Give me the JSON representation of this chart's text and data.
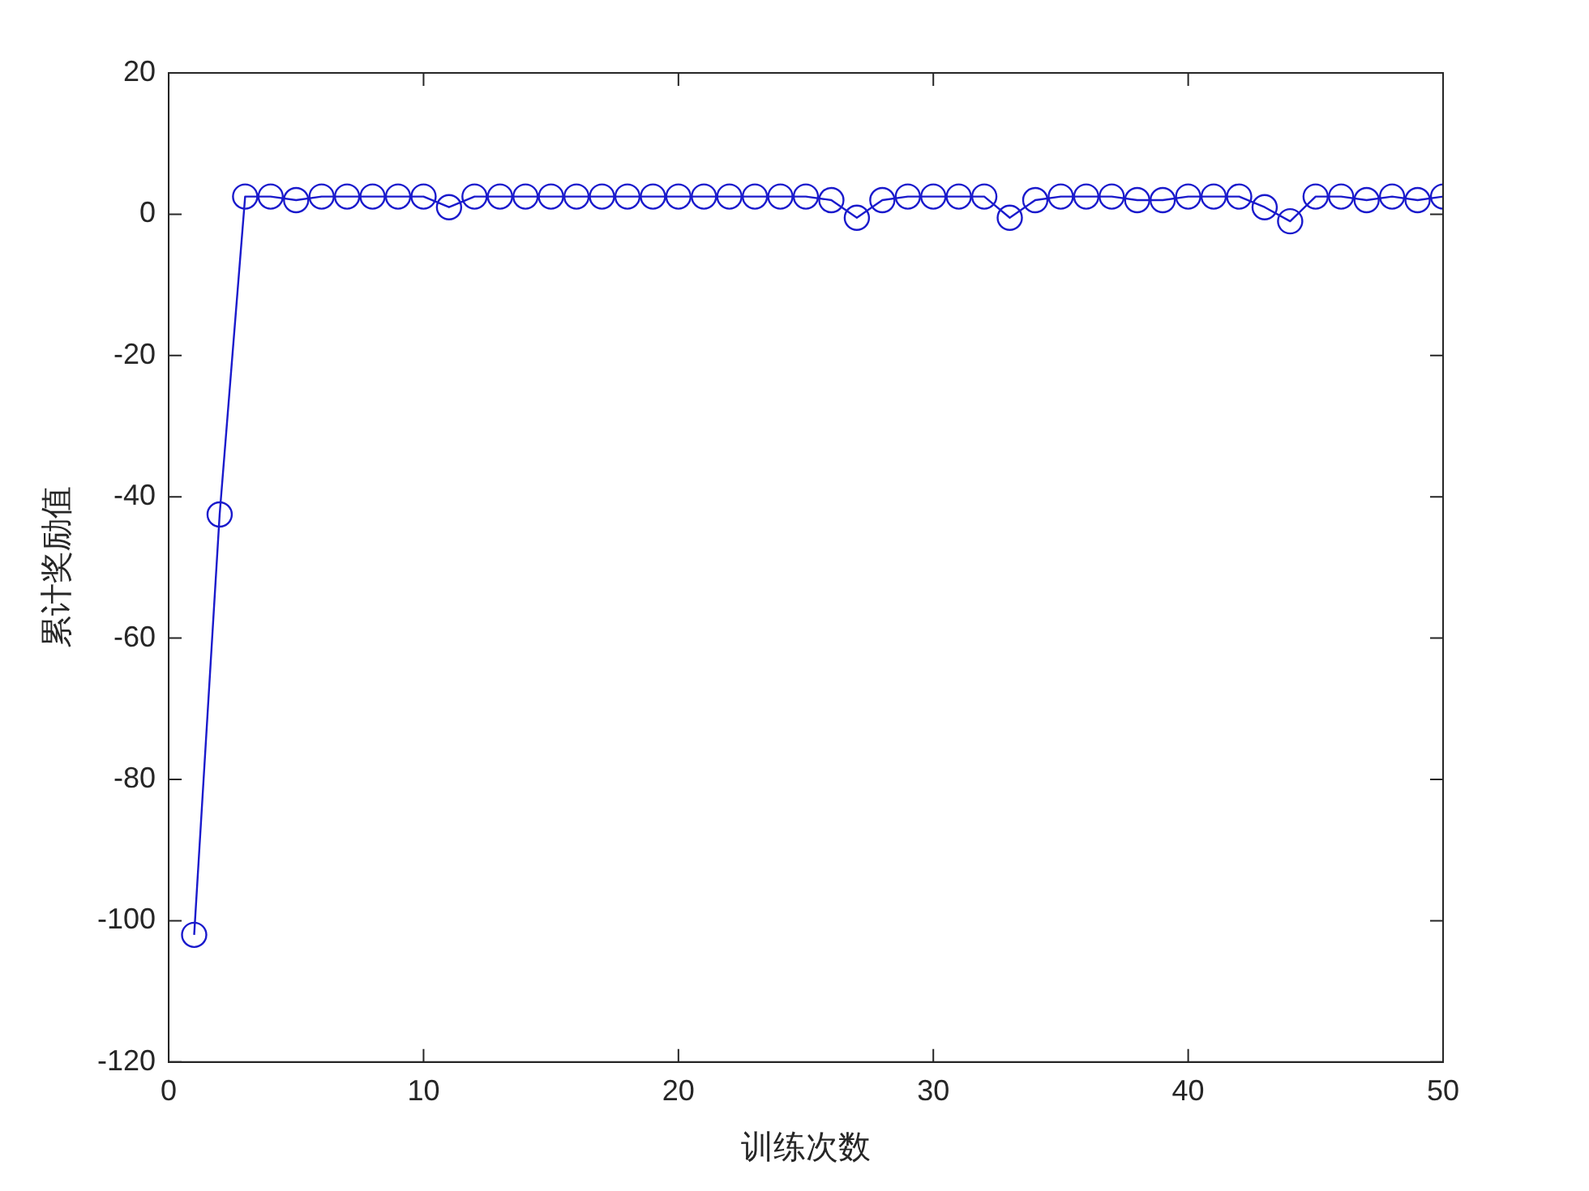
{
  "chart_data": {
    "type": "line",
    "xlabel": "训练次数",
    "ylabel": "累计奖励值",
    "x": [
      1,
      2,
      3,
      4,
      5,
      6,
      7,
      8,
      9,
      10,
      11,
      12,
      13,
      14,
      15,
      16,
      17,
      18,
      19,
      20,
      21,
      22,
      23,
      24,
      25,
      26,
      27,
      28,
      29,
      30,
      31,
      32,
      33,
      34,
      35,
      36,
      37,
      38,
      39,
      40,
      41,
      42,
      43,
      44,
      45,
      46,
      47,
      48,
      49,
      50
    ],
    "series": [
      {
        "color": "#1a1acc",
        "values": [
          -102,
          -42.5,
          2.5,
          2.5,
          2,
          2.5,
          2.5,
          2.5,
          2.5,
          2.5,
          1,
          2.5,
          2.5,
          2.5,
          2.5,
          2.5,
          2.5,
          2.5,
          2.5,
          2.5,
          2.5,
          2.5,
          2.5,
          2.5,
          2.5,
          2,
          -0.5,
          2,
          2.5,
          2.5,
          2.5,
          2.5,
          -0.5,
          2,
          2.5,
          2.5,
          2.5,
          2,
          2,
          2.5,
          2.5,
          2.5,
          1,
          -1,
          2.5,
          2.5,
          2,
          2.5,
          2,
          2.5
        ]
      }
    ],
    "xlim": [
      0,
      50
    ],
    "xticks": [
      0,
      10,
      20,
      30,
      40,
      50
    ],
    "ylim": [
      -120,
      20
    ],
    "yticks": [
      -120,
      -100,
      -80,
      -60,
      -40,
      -20,
      0,
      20
    ],
    "grid": false,
    "legend": false,
    "marker": "circle",
    "line_style": "solid"
  }
}
